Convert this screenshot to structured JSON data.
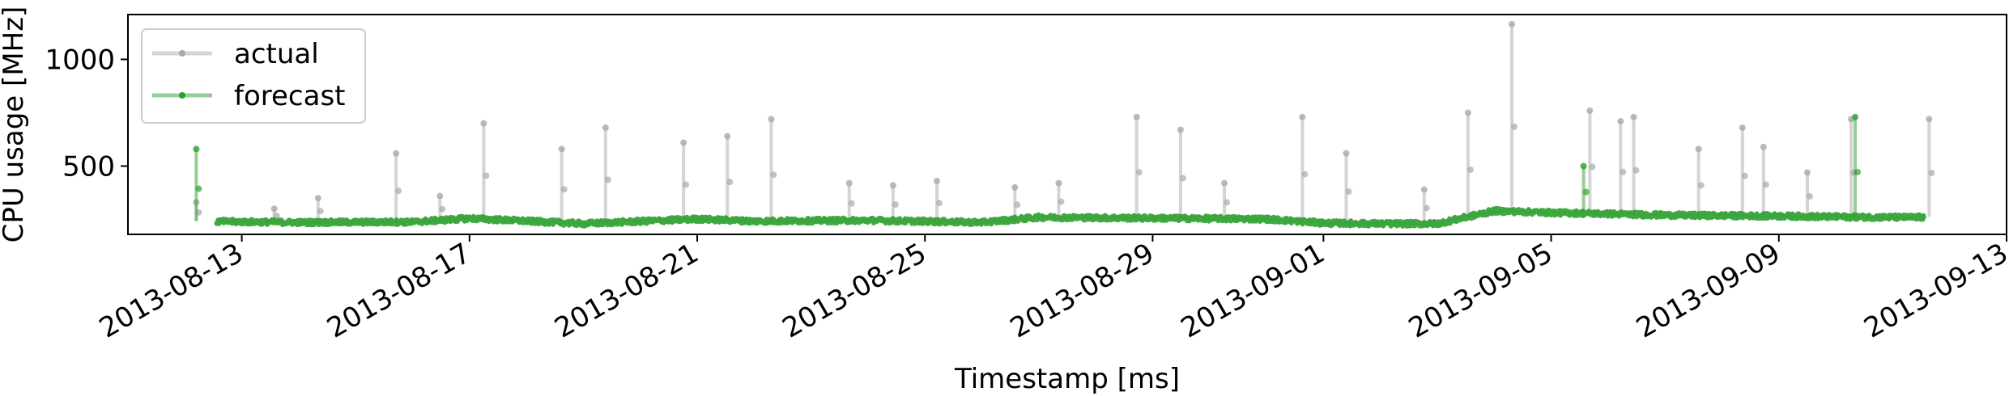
{
  "chart_data": {
    "type": "line",
    "title": "",
    "xlabel": "Timestamp [ms]",
    "ylabel": "CPU usage [MHz]",
    "x_axis_type": "date",
    "xlim": [
      "2013-08-11",
      "2013-09-13"
    ],
    "ylim": [
      180,
      1210
    ],
    "x_ticks": [
      {
        "date": "2013-08-13",
        "label": "2013-08-13"
      },
      {
        "date": "2013-08-17",
        "label": "2013-08-17"
      },
      {
        "date": "2013-08-21",
        "label": "2013-08-21"
      },
      {
        "date": "2013-08-25",
        "label": "2013-08-25"
      },
      {
        "date": "2013-08-29",
        "label": "2013-08-29"
      },
      {
        "date": "2013-09-01",
        "label": "2013-09-01"
      },
      {
        "date": "2013-09-05",
        "label": "2013-09-05"
      },
      {
        "date": "2013-09-09",
        "label": "2013-09-09"
      },
      {
        "date": "2013-09-13",
        "label": "2013-09-13"
      }
    ],
    "y_ticks": [
      500,
      1000
    ],
    "grid": false,
    "legend": "top-left",
    "series": [
      {
        "name": "actual",
        "color": "#a9a9a9",
        "baseline": [
          [
            "2013-08-12",
            245
          ],
          [
            "2013-08-14",
            238
          ],
          [
            "2013-08-16",
            240
          ],
          [
            "2013-08-17",
            258
          ],
          [
            "2013-08-19",
            232
          ],
          [
            "2013-08-21",
            255
          ],
          [
            "2013-08-22",
            245
          ],
          [
            "2013-08-24",
            248
          ],
          [
            "2013-08-26",
            238
          ],
          [
            "2013-08-27",
            262
          ],
          [
            "2013-08-29",
            258
          ],
          [
            "2013-08-31",
            255
          ],
          [
            "2013-09-01",
            235
          ],
          [
            "2013-09-02",
            232
          ],
          [
            "2013-09-03",
            232
          ],
          [
            "2013-09-04",
            292
          ],
          [
            "2013-09-05",
            285
          ],
          [
            "2013-09-07",
            272
          ],
          [
            "2013-09-09",
            268
          ],
          [
            "2013-09-10",
            265
          ],
          [
            "2013-09-11",
            262
          ]
        ],
        "spikes": [
          [
            "2013-08-12",
            330
          ],
          [
            "2013-08-13",
            300
          ],
          [
            "2013-08-14",
            350
          ],
          [
            "2013-08-15",
            560
          ],
          [
            "2013-08-16",
            360
          ],
          [
            "2013-08-17",
            700
          ],
          [
            "2013-08-18",
            580
          ],
          [
            "2013-08-19",
            680
          ],
          [
            "2013-08-20",
            610
          ],
          [
            "2013-08-21",
            640
          ],
          [
            "2013-08-22",
            720
          ],
          [
            "2013-08-23",
            420
          ],
          [
            "2013-08-24",
            410
          ],
          [
            "2013-08-25",
            430
          ],
          [
            "2013-08-26",
            400
          ],
          [
            "2013-08-27",
            420
          ],
          [
            "2013-08-28",
            730
          ],
          [
            "2013-08-29",
            670
          ],
          [
            "2013-08-30",
            420
          ],
          [
            "2013-08-31",
            730
          ],
          [
            "2013-09-01",
            560
          ],
          [
            "2013-09-02",
            390
          ],
          [
            "2013-09-03",
            750
          ],
          [
            "2013-09-04",
            1165
          ],
          [
            "2013-09-05",
            760
          ],
          [
            "2013-09-06",
            730
          ],
          [
            "2013-09-06",
            710
          ],
          [
            "2013-09-07",
            580
          ],
          [
            "2013-09-08",
            680
          ],
          [
            "2013-09-08",
            590
          ],
          [
            "2013-09-09",
            470
          ],
          [
            "2013-09-10",
            720
          ],
          [
            "2013-09-11",
            720
          ]
        ]
      },
      {
        "name": "forecast",
        "color": "#2ca02c",
        "baseline": [
          [
            "2013-08-12",
            242
          ],
          [
            "2013-08-14",
            236
          ],
          [
            "2013-08-16",
            238
          ],
          [
            "2013-08-17",
            255
          ],
          [
            "2013-08-19",
            230
          ],
          [
            "2013-08-21",
            252
          ],
          [
            "2013-08-22",
            242
          ],
          [
            "2013-08-24",
            246
          ],
          [
            "2013-08-26",
            236
          ],
          [
            "2013-08-27",
            260
          ],
          [
            "2013-08-29",
            256
          ],
          [
            "2013-08-31",
            252
          ],
          [
            "2013-09-01",
            233
          ],
          [
            "2013-09-02",
            230
          ],
          [
            "2013-09-03",
            230
          ],
          [
            "2013-09-04",
            290
          ],
          [
            "2013-09-05",
            282
          ],
          [
            "2013-09-07",
            270
          ],
          [
            "2013-09-09",
            266
          ],
          [
            "2013-09-10",
            262
          ],
          [
            "2013-09-11",
            260
          ]
        ],
        "spikes": [
          [
            "2013-08-12",
            580
          ],
          [
            "2013-09-05",
            500
          ],
          [
            "2013-09-10",
            730
          ]
        ]
      }
    ]
  }
}
